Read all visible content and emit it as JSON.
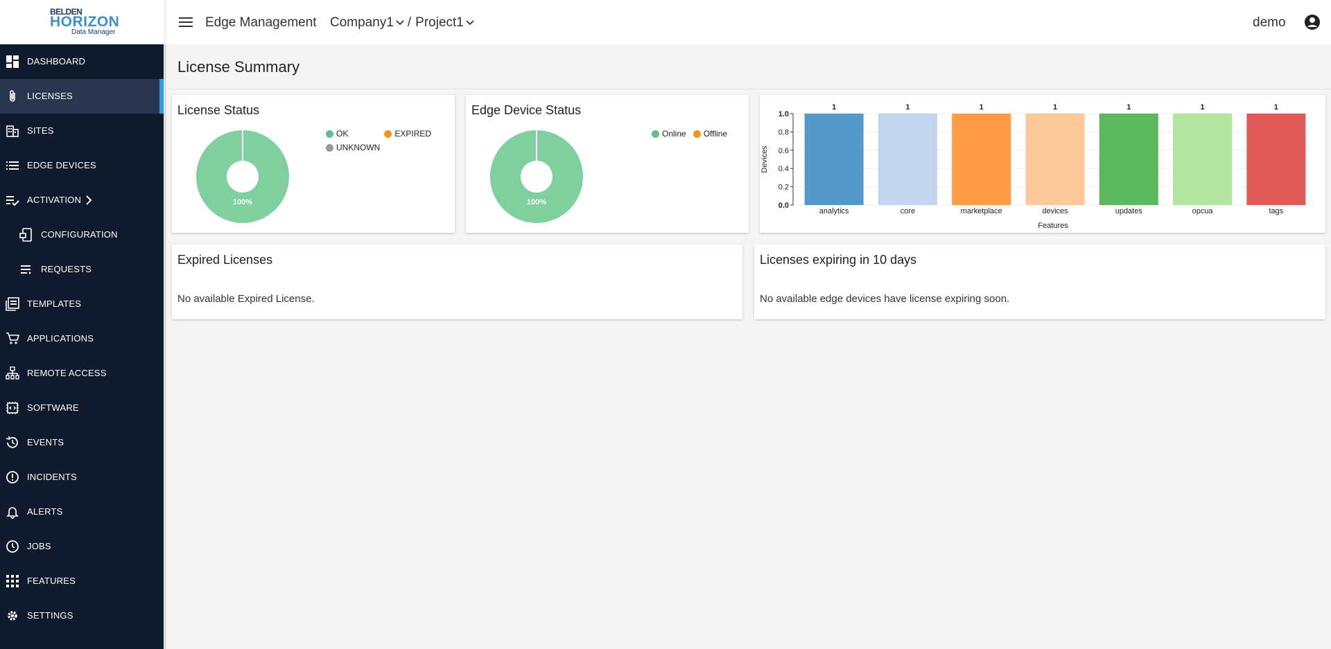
{
  "brand": {
    "line1": "BELDEN",
    "line2": "HORIZON",
    "line3": "Data Manager"
  },
  "header": {
    "app_title": "Edge Management",
    "company": "Company1",
    "separator": "/",
    "project": "Project1",
    "user": "demo"
  },
  "sidebar": {
    "items": [
      {
        "label": "DASHBOARD",
        "icon": "dashboard-icon"
      },
      {
        "label": "LICENSES",
        "icon": "paperclip-icon",
        "active": true
      },
      {
        "label": "SITES",
        "icon": "building-icon"
      },
      {
        "label": "EDGE DEVICES",
        "icon": "list-icon"
      },
      {
        "label": "ACTIVATION",
        "icon": "checklist-icon"
      },
      {
        "label": "CONFIGURATION",
        "icon": "config-icon"
      },
      {
        "label": "REQUESTS",
        "icon": "requests-icon"
      },
      {
        "label": "TEMPLATES",
        "icon": "templates-icon"
      },
      {
        "label": "APPLICATIONS",
        "icon": "cart-icon"
      },
      {
        "label": "REMOTE ACCESS",
        "icon": "network-icon"
      },
      {
        "label": "SOFTWARE",
        "icon": "chip-icon"
      },
      {
        "label": "EVENTS",
        "icon": "history-icon"
      },
      {
        "label": "INCIDENTS",
        "icon": "alert-circle-icon"
      },
      {
        "label": "ALERTS",
        "icon": "bell-icon"
      },
      {
        "label": "JOBS",
        "icon": "clock-icon"
      },
      {
        "label": "FEATURES",
        "icon": "grid-icon"
      },
      {
        "label": "SETTINGS",
        "icon": "gear-icon"
      }
    ]
  },
  "main": {
    "page_title": "License Summary",
    "license_status": {
      "title": "License Status",
      "legend": [
        "OK",
        "EXPIRED",
        "UNKNOWN"
      ],
      "legend_colors": [
        "#5cc18a",
        "#f7931e",
        "#999999"
      ],
      "label": "100%"
    },
    "edge_device_status": {
      "title": "Edge Device Status",
      "legend": [
        "Online",
        "Offline"
      ],
      "legend_colors": [
        "#5cc18a",
        "#f7931e"
      ],
      "label": "100%"
    },
    "expired": {
      "title": "Expired Licenses",
      "message": "No available Expired License."
    },
    "expiring": {
      "title": "Licenses expiring in 10 days",
      "message": "No available edge devices have license expiring soon."
    }
  },
  "chart_data": [
    {
      "type": "pie",
      "title": "License Status",
      "labels": [
        "OK",
        "EXPIRED",
        "UNKNOWN"
      ],
      "values": [
        100,
        0,
        0
      ],
      "colors": [
        "#7fcf9f",
        "#f7931e",
        "#999999"
      ],
      "donut": true
    },
    {
      "type": "pie",
      "title": "Edge Device Status",
      "labels": [
        "Online",
        "Offline"
      ],
      "values": [
        100,
        0
      ],
      "colors": [
        "#7fcf9f",
        "#f7931e"
      ],
      "donut": true
    },
    {
      "type": "bar",
      "categories": [
        "analytics",
        "core",
        "marketplace",
        "devices",
        "updates",
        "opcua",
        "tags"
      ],
      "values": [
        1,
        1,
        1,
        1,
        1,
        1,
        1
      ],
      "colors": [
        "#5599c8",
        "#c3d5ee",
        "#ff9b45",
        "#fec99a",
        "#5cb85c",
        "#b2e6a0",
        "#e05a5a"
      ],
      "xlabel": "Features",
      "ylabel": "Devices",
      "ylim": [
        0,
        1.0
      ],
      "yticks": [
        "0.0",
        "0.2",
        "0.4",
        "0.6",
        "0.8",
        "1.0"
      ]
    }
  ]
}
